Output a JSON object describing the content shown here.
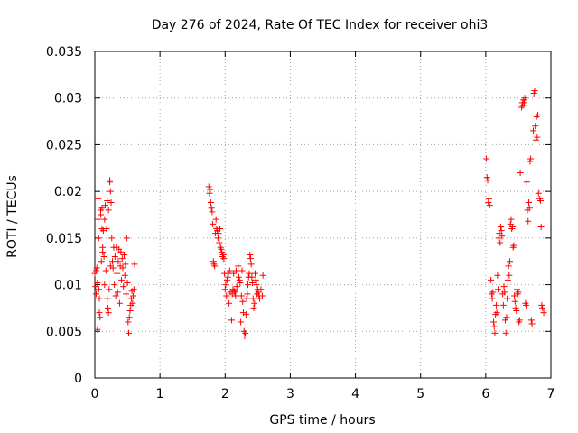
{
  "chart_data": {
    "type": "scatter",
    "title": "Day 276 of 2024, Rate Of TEC Index for receiver ohi3",
    "xlabel": "GPS time / hours",
    "ylabel": "ROTI / TECUs",
    "xlim": [
      0,
      7
    ],
    "ylim": [
      0,
      0.035
    ],
    "x_ticks": [
      0,
      1,
      2,
      3,
      4,
      5,
      6,
      7
    ],
    "x_tick_labels": [
      "0",
      "1",
      "2",
      "3",
      "4",
      "5",
      "6",
      "7"
    ],
    "y_ticks": [
      0,
      0.005,
      0.01,
      0.015,
      0.02,
      0.025,
      0.03,
      0.035
    ],
    "y_tick_labels": [
      "0",
      "0.005",
      "0.01",
      "0.015",
      "0.02",
      "0.025",
      "0.03",
      "0.035"
    ],
    "grid": true,
    "marker": "+",
    "marker_color": "#ff0000",
    "series": [
      {
        "name": "ROTI",
        "points": [
          [
            0.0,
            0.0112
          ],
          [
            0.01,
            0.0098
          ],
          [
            0.02,
            0.0115
          ],
          [
            0.02,
            0.009
          ],
          [
            0.03,
            0.0118
          ],
          [
            0.04,
            0.0052
          ],
          [
            0.04,
            0.0102
          ],
          [
            0.05,
            0.017
          ],
          [
            0.05,
            0.0192
          ],
          [
            0.06,
            0.015
          ],
          [
            0.06,
            0.0095
          ],
          [
            0.07,
            0.007
          ],
          [
            0.07,
            0.0085
          ],
          [
            0.08,
            0.0065
          ],
          [
            0.09,
            0.0175
          ],
          [
            0.09,
            0.018
          ],
          [
            0.1,
            0.0125
          ],
          [
            0.11,
            0.016
          ],
          [
            0.11,
            0.0182
          ],
          [
            0.12,
            0.014
          ],
          [
            0.12,
            0.0135
          ],
          [
            0.13,
            0.0158
          ],
          [
            0.14,
            0.013
          ],
          [
            0.15,
            0.017
          ],
          [
            0.15,
            0.01
          ],
          [
            0.16,
            0.0185
          ],
          [
            0.17,
            0.0115
          ],
          [
            0.18,
            0.016
          ],
          [
            0.19,
            0.019
          ],
          [
            0.19,
            0.0085
          ],
          [
            0.2,
            0.0075
          ],
          [
            0.21,
            0.007
          ],
          [
            0.21,
            0.018
          ],
          [
            0.22,
            0.0095
          ],
          [
            0.23,
            0.021
          ],
          [
            0.23,
            0.0212
          ],
          [
            0.24,
            0.02
          ],
          [
            0.24,
            0.012
          ],
          [
            0.25,
            0.0188
          ],
          [
            0.26,
            0.015
          ],
          [
            0.27,
            0.0125
          ],
          [
            0.28,
            0.0118
          ],
          [
            0.29,
            0.014
          ],
          [
            0.3,
            0.01
          ],
          [
            0.31,
            0.013
          ],
          [
            0.32,
            0.0088
          ],
          [
            0.33,
            0.014
          ],
          [
            0.34,
            0.0112
          ],
          [
            0.35,
            0.0092
          ],
          [
            0.36,
            0.0125
          ],
          [
            0.37,
            0.0138
          ],
          [
            0.38,
            0.008
          ],
          [
            0.39,
            0.012
          ],
          [
            0.4,
            0.0135
          ],
          [
            0.41,
            0.0105
          ],
          [
            0.42,
            0.0128
          ],
          [
            0.43,
            0.0118
          ],
          [
            0.44,
            0.0098
          ],
          [
            0.45,
            0.0132
          ],
          [
            0.46,
            0.011
          ],
          [
            0.47,
            0.0122
          ],
          [
            0.48,
            0.009
          ],
          [
            0.49,
            0.015
          ],
          [
            0.5,
            0.0102
          ],
          [
            0.51,
            0.006
          ],
          [
            0.52,
            0.0048
          ],
          [
            0.53,
            0.0065
          ],
          [
            0.54,
            0.0072
          ],
          [
            0.55,
            0.0078
          ],
          [
            0.56,
            0.0085
          ],
          [
            0.57,
            0.0093
          ],
          [
            0.58,
            0.008
          ],
          [
            0.59,
            0.0088
          ],
          [
            0.6,
            0.0095
          ],
          [
            0.61,
            0.0122
          ],
          [
            1.75,
            0.0205
          ],
          [
            1.76,
            0.0198
          ],
          [
            1.77,
            0.0202
          ],
          [
            1.78,
            0.0188
          ],
          [
            1.79,
            0.0182
          ],
          [
            1.8,
            0.0178
          ],
          [
            1.81,
            0.0165
          ],
          [
            1.82,
            0.0125
          ],
          [
            1.83,
            0.0122
          ],
          [
            1.84,
            0.012
          ],
          [
            1.85,
            0.0155
          ],
          [
            1.86,
            0.017
          ],
          [
            1.87,
            0.016
          ],
          [
            1.88,
            0.0158
          ],
          [
            1.89,
            0.015
          ],
          [
            1.9,
            0.0155
          ],
          [
            1.91,
            0.0145
          ],
          [
            1.92,
            0.016
          ],
          [
            1.93,
            0.014
          ],
          [
            1.94,
            0.0138
          ],
          [
            1.95,
            0.0135
          ],
          [
            1.96,
            0.013
          ],
          [
            1.97,
            0.0132
          ],
          [
            1.98,
            0.0128
          ],
          [
            1.99,
            0.0112
          ],
          [
            2.0,
            0.0095
          ],
          [
            2.01,
            0.01
          ],
          [
            2.02,
            0.0088
          ],
          [
            2.03,
            0.0105
          ],
          [
            2.04,
            0.0108
          ],
          [
            2.05,
            0.0112
          ],
          [
            2.06,
            0.008
          ],
          [
            2.07,
            0.0115
          ],
          [
            2.08,
            0.0092
          ],
          [
            2.1,
            0.0062
          ],
          [
            2.11,
            0.009
          ],
          [
            2.12,
            0.0095
          ],
          [
            2.13,
            0.0112
          ],
          [
            2.14,
            0.0093
          ],
          [
            2.15,
            0.0092
          ],
          [
            2.16,
            0.0088
          ],
          [
            2.17,
            0.0115
          ],
          [
            2.18,
            0.0098
          ],
          [
            2.2,
            0.012
          ],
          [
            2.21,
            0.0108
          ],
          [
            2.22,
            0.0105
          ],
          [
            2.23,
            0.0102
          ],
          [
            2.24,
            0.006
          ],
          [
            2.25,
            0.0088
          ],
          [
            2.26,
            0.0115
          ],
          [
            2.27,
            0.0082
          ],
          [
            2.28,
            0.007
          ],
          [
            2.29,
            0.005
          ],
          [
            2.3,
            0.0045
          ],
          [
            2.31,
            0.0048
          ],
          [
            2.32,
            0.0068
          ],
          [
            2.33,
            0.0085
          ],
          [
            2.34,
            0.009
          ],
          [
            2.35,
            0.01
          ],
          [
            2.36,
            0.0108
          ],
          [
            2.37,
            0.0112
          ],
          [
            2.38,
            0.0132
          ],
          [
            2.39,
            0.0128
          ],
          [
            2.4,
            0.0122
          ],
          [
            2.41,
            0.0108
          ],
          [
            2.42,
            0.0102
          ],
          [
            2.43,
            0.0085
          ],
          [
            2.44,
            0.0075
          ],
          [
            2.45,
            0.008
          ],
          [
            2.46,
            0.0112
          ],
          [
            2.47,
            0.0105
          ],
          [
            2.48,
            0.01
          ],
          [
            2.49,
            0.009
          ],
          [
            2.5,
            0.0095
          ],
          [
            2.51,
            0.0092
          ],
          [
            2.52,
            0.0088
          ],
          [
            2.53,
            0.0085
          ],
          [
            2.55,
            0.0095
          ],
          [
            2.57,
            0.0088
          ],
          [
            2.58,
            0.011
          ],
          [
            6.01,
            0.0235
          ],
          [
            6.02,
            0.0215
          ],
          [
            6.03,
            0.0212
          ],
          [
            6.04,
            0.0188
          ],
          [
            6.05,
            0.0192
          ],
          [
            6.06,
            0.0185
          ],
          [
            6.08,
            0.0105
          ],
          [
            6.09,
            0.009
          ],
          [
            6.1,
            0.0085
          ],
          [
            6.11,
            0.0092
          ],
          [
            6.12,
            0.006
          ],
          [
            6.13,
            0.0055
          ],
          [
            6.14,
            0.0048
          ],
          [
            6.15,
            0.0068
          ],
          [
            6.16,
            0.0078
          ],
          [
            6.17,
            0.007
          ],
          [
            6.18,
            0.011
          ],
          [
            6.19,
            0.0095
          ],
          [
            6.2,
            0.015
          ],
          [
            6.21,
            0.0155
          ],
          [
            6.22,
            0.0145
          ],
          [
            6.23,
            0.0162
          ],
          [
            6.24,
            0.0158
          ],
          [
            6.25,
            0.0152
          ],
          [
            6.26,
            0.009
          ],
          [
            6.27,
            0.0078
          ],
          [
            6.28,
            0.0098
          ],
          [
            6.29,
            0.0092
          ],
          [
            6.3,
            0.0062
          ],
          [
            6.31,
            0.0048
          ],
          [
            6.32,
            0.0065
          ],
          [
            6.33,
            0.0085
          ],
          [
            6.34,
            0.0105
          ],
          [
            6.35,
            0.012
          ],
          [
            6.36,
            0.011
          ],
          [
            6.37,
            0.0125
          ],
          [
            6.38,
            0.0165
          ],
          [
            6.39,
            0.017
          ],
          [
            6.4,
            0.016
          ],
          [
            6.41,
            0.0162
          ],
          [
            6.42,
            0.014
          ],
          [
            6.43,
            0.0142
          ],
          [
            6.44,
            0.0088
          ],
          [
            6.45,
            0.0082
          ],
          [
            6.46,
            0.0075
          ],
          [
            6.47,
            0.0072
          ],
          [
            6.48,
            0.0095
          ],
          [
            6.49,
            0.009
          ],
          [
            6.5,
            0.0092
          ],
          [
            6.51,
            0.006
          ],
          [
            6.52,
            0.0062
          ],
          [
            6.53,
            0.022
          ],
          [
            6.55,
            0.029
          ],
          [
            6.56,
            0.0295
          ],
          [
            6.57,
            0.0292
          ],
          [
            6.58,
            0.0298
          ],
          [
            6.59,
            0.0295
          ],
          [
            6.6,
            0.03
          ],
          [
            6.61,
            0.008
          ],
          [
            6.62,
            0.0078
          ],
          [
            6.63,
            0.021
          ],
          [
            6.64,
            0.018
          ],
          [
            6.65,
            0.0168
          ],
          [
            6.66,
            0.0188
          ],
          [
            6.67,
            0.0182
          ],
          [
            6.68,
            0.0232
          ],
          [
            6.69,
            0.0235
          ],
          [
            6.7,
            0.0062
          ],
          [
            6.71,
            0.0058
          ],
          [
            6.73,
            0.0265
          ],
          [
            6.74,
            0.0305
          ],
          [
            6.75,
            0.0308
          ],
          [
            6.76,
            0.027
          ],
          [
            6.77,
            0.0255
          ],
          [
            6.78,
            0.028
          ],
          [
            6.79,
            0.0258
          ],
          [
            6.8,
            0.0282
          ],
          [
            6.81,
            0.0198
          ],
          [
            6.83,
            0.0192
          ],
          [
            6.84,
            0.019
          ],
          [
            6.85,
            0.0162
          ],
          [
            6.86,
            0.0078
          ],
          [
            6.87,
            0.0075
          ],
          [
            6.89,
            0.007
          ]
        ]
      }
    ]
  }
}
